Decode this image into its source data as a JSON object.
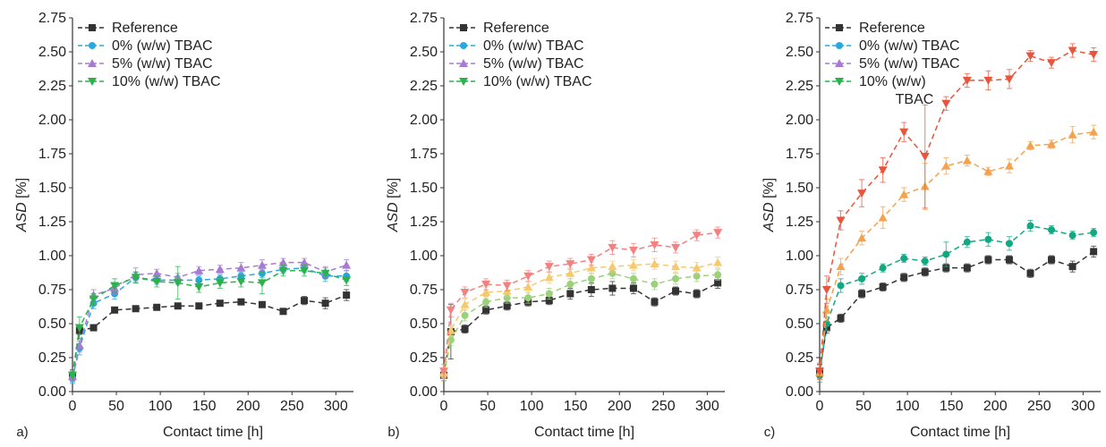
{
  "figure": {
    "panels": [
      "a)",
      "b)",
      "c)"
    ]
  },
  "colors": {
    "Reference": "#333333",
    "0% (w/w) TBAC": "#29a8e0",
    "5% (w/w) TBAC": "#a77bd1",
    "10% (w/w) TBAC": "#2bb24c",
    "orange": "#f4a24e",
    "red": "#e8553d",
    "yellow": "#f7c96e",
    "pink": "#f58080",
    "lightgreen": "#9bd17a",
    "teal": "#12a982"
  },
  "chart_data": [
    {
      "type": "line",
      "panel_label": "a)",
      "xlabel": "Contact time [h]",
      "ylabel_italic": "ASD",
      "ylabel_unit": " [%]",
      "xlim": [
        0,
        320
      ],
      "ylim": [
        0,
        2.75
      ],
      "xticks": [
        0,
        50,
        100,
        150,
        200,
        250,
        300
      ],
      "yticks": [
        "0.00",
        "0.25",
        "0.50",
        "0.75",
        "1.00",
        "1.25",
        "1.50",
        "1.75",
        "2.00",
        "2.25",
        "2.50",
        "2.75"
      ],
      "legend": {
        "position": "top-left",
        "entries": [
          {
            "label": "Reference",
            "color": "#333333",
            "marker": "square"
          },
          {
            "label": "0% (w/w) TBAC",
            "color": "#29a8e0",
            "marker": "circle"
          },
          {
            "label": "5% (w/w) TBAC",
            "color": "#a77bd1",
            "marker": "triangle-up"
          },
          {
            "label": "10% (w/w) TBAC",
            "color": "#2bb24c",
            "marker": "triangle-down"
          }
        ]
      },
      "series": [
        {
          "name": "Reference",
          "color": "#333333",
          "marker": "square",
          "x": [
            0,
            8,
            24,
            48,
            72,
            96,
            120,
            144,
            168,
            192,
            216,
            240,
            264,
            288,
            312
          ],
          "y": [
            0.12,
            0.45,
            0.47,
            0.6,
            0.61,
            0.62,
            0.63,
            0.63,
            0.65,
            0.66,
            0.64,
            0.59,
            0.67,
            0.65,
            0.71
          ],
          "err": [
            0.04,
            0.03,
            0.02,
            0.02,
            0.02,
            0.02,
            0.02,
            0.02,
            0.02,
            0.02,
            0.02,
            0.02,
            0.03,
            0.04,
            0.04
          ]
        },
        {
          "name": "0% (w/w) TBAC",
          "color": "#29a8e0",
          "marker": "circle",
          "x": [
            0,
            8,
            24,
            48,
            72,
            96,
            120,
            144,
            168,
            192,
            216,
            240,
            264,
            288,
            312
          ],
          "y": [
            0.1,
            0.32,
            0.65,
            0.72,
            0.84,
            0.82,
            0.82,
            0.82,
            0.83,
            0.85,
            0.87,
            0.9,
            0.91,
            0.85,
            0.85
          ],
          "err": [
            0.04,
            0.05,
            0.04,
            0.04,
            0.04,
            0.03,
            0.03,
            0.03,
            0.03,
            0.03,
            0.03,
            0.03,
            0.03,
            0.04,
            0.04
          ]
        },
        {
          "name": "5% (w/w) TBAC",
          "color": "#a77bd1",
          "marker": "triangle-up",
          "x": [
            0,
            8,
            24,
            48,
            72,
            96,
            120,
            144,
            168,
            192,
            216,
            240,
            264,
            288,
            312
          ],
          "y": [
            0.11,
            0.34,
            0.71,
            0.76,
            0.86,
            0.87,
            0.84,
            0.89,
            0.9,
            0.91,
            0.93,
            0.95,
            0.95,
            0.88,
            0.93
          ],
          "err": [
            0.04,
            0.05,
            0.04,
            0.04,
            0.05,
            0.03,
            0.03,
            0.03,
            0.03,
            0.04,
            0.04,
            0.03,
            0.03,
            0.04,
            0.04
          ]
        },
        {
          "name": "10% (w/w) TBAC",
          "color": "#2bb24c",
          "marker": "triangle-down",
          "x": [
            0,
            8,
            24,
            48,
            72,
            96,
            120,
            144,
            168,
            192,
            216,
            240,
            264,
            288,
            312
          ],
          "y": [
            0.12,
            0.47,
            0.68,
            0.78,
            0.84,
            0.81,
            0.8,
            0.77,
            0.8,
            0.81,
            0.8,
            0.89,
            0.89,
            0.87,
            0.82
          ],
          "err": [
            0.04,
            0.08,
            0.04,
            0.05,
            0.04,
            0.04,
            0.12,
            0.04,
            0.04,
            0.04,
            0.08,
            0.04,
            0.04,
            0.04,
            0.04
          ]
        }
      ]
    },
    {
      "type": "line",
      "panel_label": "b)",
      "xlabel": "Contact time [h]",
      "ylabel_italic": "ASD",
      "ylabel_unit": " [%]",
      "xlim": [
        0,
        320
      ],
      "ylim": [
        0,
        2.75
      ],
      "xticks": [
        0,
        50,
        100,
        150,
        200,
        250,
        300
      ],
      "yticks": [
        "0.00",
        "0.25",
        "0.50",
        "0.75",
        "1.00",
        "1.25",
        "1.50",
        "1.75",
        "2.00",
        "2.25",
        "2.50",
        "2.75"
      ],
      "legend": {
        "position": "top-left",
        "entries": [
          {
            "label": "Reference",
            "color": "#333333",
            "marker": "square"
          },
          {
            "label": "0% (w/w) TBAC",
            "color": "#29a8e0",
            "marker": "circle"
          },
          {
            "label": "5% (w/w) TBAC",
            "color": "#a77bd1",
            "marker": "triangle-up"
          },
          {
            "label": "10% (w/w) TBAC",
            "color": "#2bb24c",
            "marker": "triangle-down"
          }
        ]
      },
      "series": [
        {
          "color": "#333333",
          "marker": "square",
          "x": [
            0,
            8,
            24,
            48,
            72,
            96,
            120,
            144,
            168,
            192,
            216,
            240,
            264,
            288,
            312
          ],
          "y": [
            0.12,
            0.44,
            0.46,
            0.6,
            0.63,
            0.66,
            0.67,
            0.72,
            0.75,
            0.76,
            0.76,
            0.66,
            0.74,
            0.72,
            0.8
          ],
          "err": [
            0.04,
            0.2,
            0.03,
            0.03,
            0.03,
            0.03,
            0.03,
            0.04,
            0.05,
            0.05,
            0.04,
            0.03,
            0.03,
            0.03,
            0.04
          ]
        },
        {
          "color": "#9bd17a",
          "marker": "circle",
          "x": [
            0,
            8,
            24,
            48,
            72,
            96,
            120,
            144,
            168,
            192,
            216,
            240,
            264,
            288,
            312
          ],
          "y": [
            0.12,
            0.38,
            0.56,
            0.66,
            0.69,
            0.69,
            0.72,
            0.79,
            0.83,
            0.87,
            0.83,
            0.79,
            0.83,
            0.85,
            0.86
          ],
          "err": [
            0.04,
            0.04,
            0.04,
            0.04,
            0.04,
            0.04,
            0.04,
            0.04,
            0.04,
            0.04,
            0.04,
            0.04,
            0.04,
            0.04,
            0.04
          ]
        },
        {
          "color": "#f7c96e",
          "marker": "triangle-up",
          "x": [
            0,
            8,
            24,
            48,
            72,
            96,
            120,
            144,
            168,
            192,
            216,
            240,
            264,
            288,
            312
          ],
          "y": [
            0.14,
            0.45,
            0.64,
            0.73,
            0.74,
            0.77,
            0.84,
            0.87,
            0.91,
            0.92,
            0.93,
            0.94,
            0.92,
            0.91,
            0.95
          ],
          "err": [
            0.04,
            0.04,
            0.04,
            0.04,
            0.04,
            0.04,
            0.04,
            0.04,
            0.04,
            0.04,
            0.04,
            0.04,
            0.04,
            0.04,
            0.04
          ]
        },
        {
          "color": "#f58080",
          "marker": "triangle-down",
          "x": [
            0,
            8,
            24,
            48,
            72,
            96,
            120,
            144,
            168,
            192,
            216,
            240,
            264,
            288,
            312
          ],
          "y": [
            0.15,
            0.6,
            0.73,
            0.79,
            0.78,
            0.85,
            0.92,
            0.94,
            0.97,
            1.06,
            1.04,
            1.08,
            1.06,
            1.15,
            1.17
          ],
          "err": [
            0.05,
            0.05,
            0.04,
            0.04,
            0.04,
            0.04,
            0.04,
            0.04,
            0.04,
            0.05,
            0.05,
            0.05,
            0.04,
            0.04,
            0.04
          ]
        }
      ]
    },
    {
      "type": "line",
      "panel_label": "c)",
      "xlabel": "Contact time [h]",
      "ylabel_italic": "ASD",
      "ylabel_unit": " [%]",
      "xlim": [
        0,
        320
      ],
      "ylim": [
        0,
        2.75
      ],
      "xticks": [
        0,
        50,
        100,
        150,
        200,
        250,
        300
      ],
      "yticks": [
        "0.00",
        "0.25",
        "0.50",
        "0.75",
        "1.00",
        "1.25",
        "1.50",
        "1.75",
        "2.00",
        "2.25",
        "2.50",
        "2.75"
      ],
      "legend": {
        "position": "top-left",
        "entries": [
          {
            "label": "Reference",
            "color": "#333333",
            "marker": "square"
          },
          {
            "label": "0% (w/w) TBAC",
            "color": "#29a8e0",
            "marker": "circle"
          },
          {
            "label": "5% (w/w) TBAC",
            "color": "#a77bd1",
            "marker": "triangle-up"
          },
          {
            "label": "10% (w/w)",
            "label_line2": "TBAC",
            "color": "#2bb24c",
            "marker": "triangle-down"
          }
        ]
      },
      "series": [
        {
          "color": "#333333",
          "marker": "square",
          "x": [
            0,
            8,
            24,
            48,
            72,
            96,
            120,
            144,
            168,
            192,
            216,
            240,
            264,
            288,
            312
          ],
          "y": [
            0.15,
            0.47,
            0.54,
            0.72,
            0.77,
            0.84,
            0.88,
            0.91,
            0.91,
            0.97,
            0.97,
            0.87,
            0.97,
            0.92,
            1.03
          ],
          "err": [
            0.05,
            0.04,
            0.03,
            0.03,
            0.03,
            0.03,
            0.03,
            0.03,
            0.03,
            0.03,
            0.03,
            0.03,
            0.03,
            0.04,
            0.04
          ]
        },
        {
          "color": "#12a982",
          "marker": "circle",
          "x": [
            0,
            8,
            24,
            48,
            72,
            96,
            120,
            144,
            168,
            192,
            216,
            240,
            264,
            288,
            312
          ],
          "y": [
            0.12,
            0.5,
            0.78,
            0.83,
            0.91,
            0.98,
            0.96,
            1.01,
            1.1,
            1.12,
            1.09,
            1.22,
            1.19,
            1.15,
            1.17
          ],
          "err": [
            0.05,
            0.05,
            0.05,
            0.04,
            0.03,
            0.03,
            0.03,
            0.09,
            0.04,
            0.05,
            0.05,
            0.04,
            0.03,
            0.03,
            0.03
          ]
        },
        {
          "color": "#f4a24e",
          "marker": "triangle-up",
          "x": [
            0,
            8,
            24,
            48,
            72,
            96,
            120,
            144,
            168,
            192,
            216,
            240,
            264,
            288,
            312
          ],
          "y": [
            0.14,
            0.6,
            0.92,
            1.13,
            1.28,
            1.45,
            1.51,
            1.66,
            1.7,
            1.62,
            1.66,
            1.81,
            1.82,
            1.89,
            1.91
          ],
          "err": [
            0.05,
            0.08,
            0.06,
            0.05,
            0.08,
            0.05,
            0.17,
            0.06,
            0.04,
            0.03,
            0.05,
            0.03,
            0.03,
            0.06,
            0.05
          ]
        },
        {
          "color": "#e8553d",
          "marker": "triangle-down",
          "x": [
            0,
            8,
            24,
            48,
            72,
            96,
            120,
            144,
            168,
            192,
            216,
            240,
            264,
            288,
            312
          ],
          "y": [
            0.15,
            0.75,
            1.26,
            1.46,
            1.63,
            1.91,
            1.73,
            2.12,
            2.29,
            2.29,
            2.3,
            2.47,
            2.42,
            2.51,
            2.48
          ],
          "err": [
            0.06,
            0.1,
            0.07,
            0.1,
            0.09,
            0.07,
            0.38,
            0.05,
            0.05,
            0.07,
            0.07,
            0.04,
            0.04,
            0.05,
            0.05
          ]
        }
      ]
    }
  ]
}
